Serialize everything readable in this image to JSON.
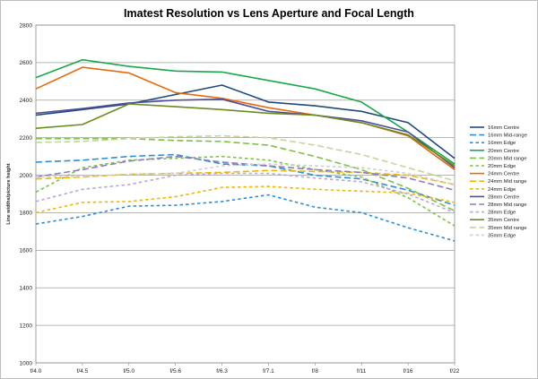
{
  "chart_data": {
    "type": "line",
    "title": "Imatest Resolution vs Lens Aperture and Focal Length",
    "xlabel": "",
    "ylabel": "Line widths/picture height",
    "categories": [
      "f/4.0",
      "f/4.5",
      "f/5.0",
      "f/5.6",
      "f/6.3",
      "f/7.1",
      "f/8",
      "f/11",
      "f/16",
      "f/22"
    ],
    "ylim": [
      1000,
      2800
    ],
    "yticks": [
      1000,
      1200,
      1400,
      1600,
      1800,
      2000,
      2200,
      2400,
      2600,
      2800
    ],
    "grid": true,
    "legend_position": "right",
    "series": [
      {
        "name": "16mm Centre",
        "color": "#1f497d",
        "dash": "solid",
        "start": 0,
        "values": [
          2320,
          2350,
          2380,
          2430,
          2480,
          2390,
          2370,
          2340,
          2280,
          2090
        ]
      },
      {
        "name": "16mm Mid-range",
        "color": "#2e8fd6",
        "dash": "long",
        "start": 0,
        "values": [
          2070,
          2080,
          2100,
          2110,
          2060,
          2050,
          2000,
          1980,
          1920,
          1840
        ]
      },
      {
        "name": "16mm Edge",
        "color": "#2e8fd6",
        "dash": "short",
        "start": 0,
        "values": [
          1740,
          1780,
          1835,
          1840,
          1860,
          1895,
          1830,
          1800,
          1720,
          1650
        ]
      },
      {
        "name": "20mm Centre",
        "color": "#19a84a",
        "dash": "solid",
        "start": 0,
        "values": [
          2520,
          2615,
          2580,
          2555,
          2550,
          2505,
          2460,
          2390,
          2230,
          2060
        ]
      },
      {
        "name": "20mm Mid range",
        "color": "#7cc243",
        "dash": "long",
        "start": 0,
        "values": [
          2195,
          2195,
          2195,
          2185,
          2180,
          2160,
          2100,
          2030,
          1930,
          1810
        ]
      },
      {
        "name": "20mm Edge",
        "color": "#7cc243",
        "dash": "short",
        "start": 0,
        "values": [
          1910,
          2040,
          2080,
          2090,
          2100,
          2080,
          2030,
          1990,
          1880,
          1730
        ]
      },
      {
        "name": "24mm Centre",
        "color": "#e46c0a",
        "dash": "solid",
        "start": 0,
        "values": [
          2460,
          2575,
          2545,
          2440,
          2410,
          2360,
          2320,
          2280,
          2210,
          2030
        ]
      },
      {
        "name": "24mm Mid range",
        "color": "#f2b800",
        "dash": "long",
        "start": 0,
        "values": [
          1980,
          1990,
          2005,
          2010,
          2015,
          2025,
          2020,
          2015,
          2000,
          1950
        ]
      },
      {
        "name": "24mm Edge",
        "color": "#f2b800",
        "dash": "short",
        "start": 0,
        "values": [
          1800,
          1855,
          1860,
          1885,
          1935,
          1940,
          1925,
          1915,
          1905,
          1855
        ]
      },
      {
        "name": "28mm Centre",
        "color": "#4f4f9a",
        "dash": "solid",
        "start": 0,
        "values": [
          2330,
          2355,
          2385,
          2400,
          2405,
          2340,
          2320,
          2290,
          2230,
          2040
        ]
      },
      {
        "name": "28mm Mid range",
        "color": "#8f7cc0",
        "dash": "long",
        "start": 0,
        "values": [
          1990,
          2030,
          2075,
          2100,
          2070,
          2050,
          2030,
          2015,
          1985,
          1920
        ]
      },
      {
        "name": "28mm Edge",
        "color": "#b9a7d9",
        "dash": "short",
        "start": 0,
        "values": [
          1860,
          1925,
          1950,
          2000,
          2010,
          2010,
          1985,
          1965,
          1900,
          1800
        ]
      },
      {
        "name": "35mm Centre",
        "color": "#6a8c1f",
        "dash": "solid",
        "start": 0,
        "values": [
          2250,
          2270,
          2380,
          2365,
          2350,
          2330,
          2320,
          2280,
          2215,
          2050
        ]
      },
      {
        "name": "35mm Mid range",
        "color": "#c3d69b",
        "dash": "long",
        "start": 0,
        "values": [
          2175,
          2180,
          2195,
          2205,
          2210,
          2200,
          2160,
          2110,
          2040,
          1970
        ]
      },
      {
        "name": "35mm Edge",
        "color": "#cfcfcf",
        "dash": "short",
        "start": 0,
        "values": [
          1990,
          1995,
          2005,
          2010,
          2050,
          2060,
          2050,
          2040,
          2010,
          1950
        ]
      }
    ]
  }
}
